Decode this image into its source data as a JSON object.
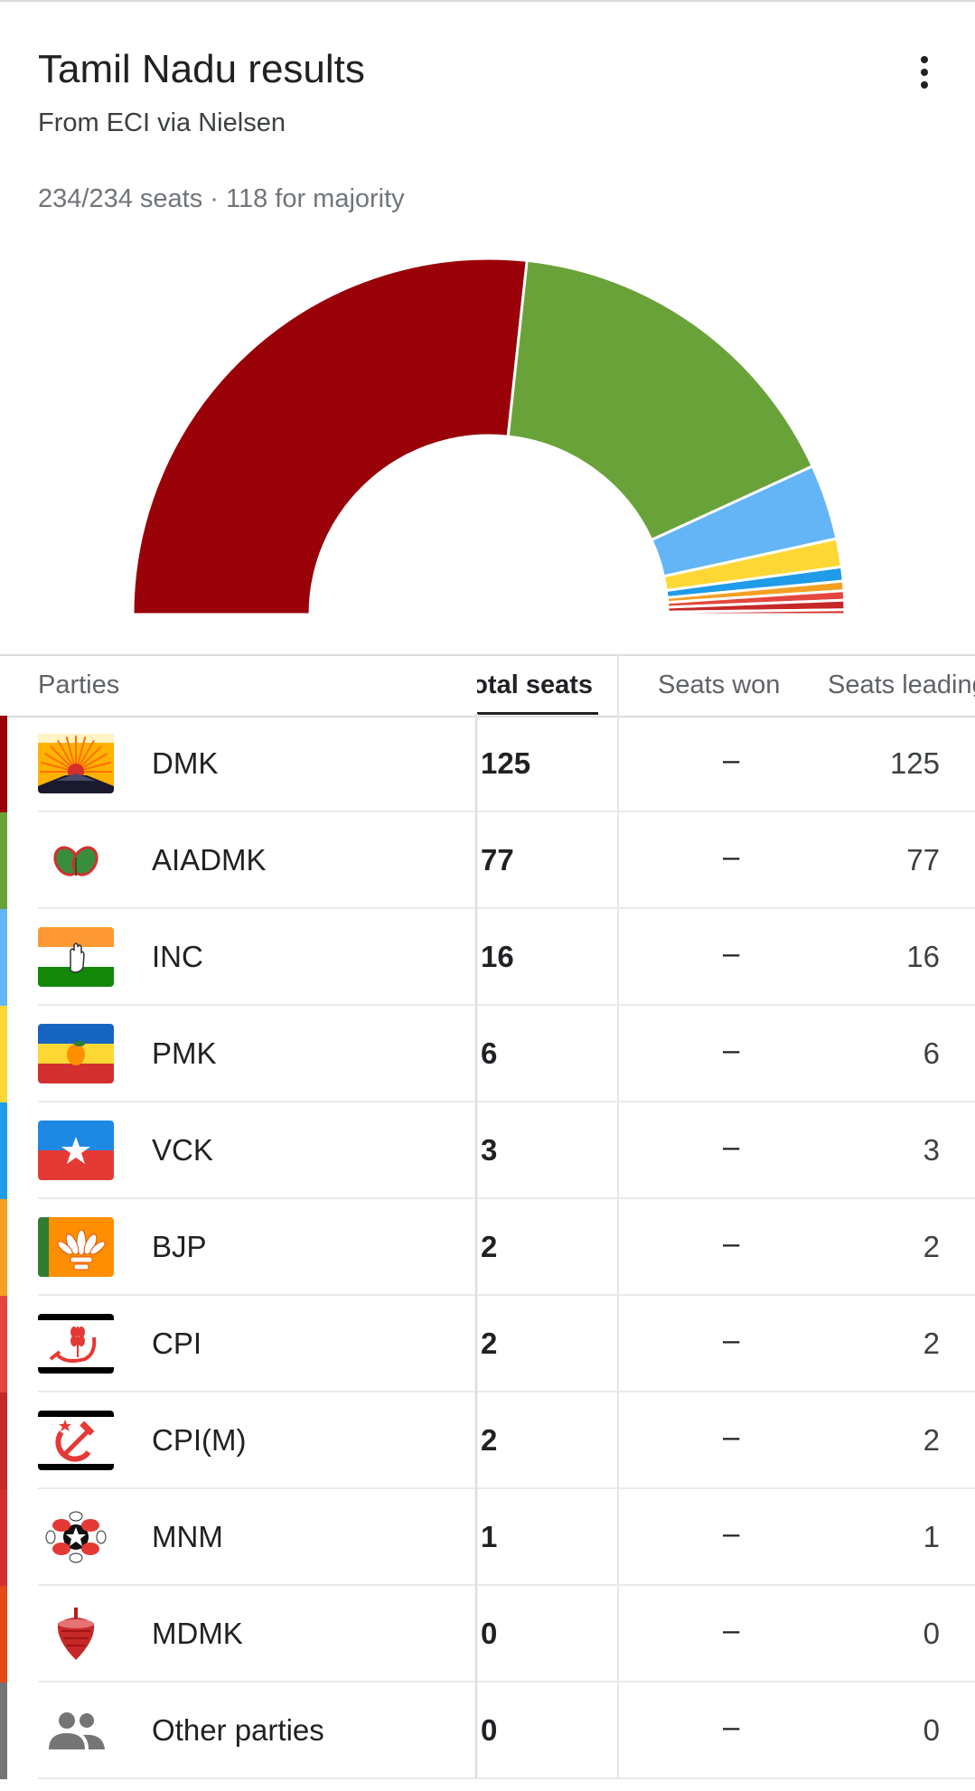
{
  "header": {
    "title": "Tamil Nadu results",
    "subtitle": "From ECI via Nielsen",
    "menu_icon": "more-vert-icon"
  },
  "seats_info": "234/234 seats · 118 for majority",
  "table": {
    "columns": [
      "Parties",
      "Total seats",
      "Seats won",
      "Seats leading"
    ],
    "rows": [
      {
        "party": "DMK",
        "total": "125",
        "won": "–",
        "leading": "125",
        "color": "#990008",
        "logo": "dmk-rising-sun-icon"
      },
      {
        "party": "AIADMK",
        "total": "77",
        "won": "–",
        "leading": "77",
        "color": "#6aa23a",
        "logo": "aiadmk-two-leaves-icon"
      },
      {
        "party": "INC",
        "total": "16",
        "won": "–",
        "leading": "16",
        "color": "#64b5f6",
        "logo": "inc-hand-flag-icon"
      },
      {
        "party": "PMK",
        "total": "6",
        "won": "–",
        "leading": "6",
        "color": "#fdd835",
        "logo": "pmk-mango-flag-icon"
      },
      {
        "party": "VCK",
        "total": "3",
        "won": "–",
        "leading": "3",
        "color": "#1e9be9",
        "logo": "vck-star-flag-icon"
      },
      {
        "party": "BJP",
        "total": "2",
        "won": "–",
        "leading": "2",
        "color": "#f4a023",
        "logo": "bjp-lotus-icon"
      },
      {
        "party": "CPI",
        "total": "2",
        "won": "–",
        "leading": "2",
        "color": "#e5463d",
        "logo": "cpi-sickle-wheat-icon"
      },
      {
        "party": "CPI(M)",
        "total": "2",
        "won": "–",
        "leading": "2",
        "color": "#c62828",
        "logo": "cpim-hammer-sickle-icon"
      },
      {
        "party": "MNM",
        "total": "1",
        "won": "–",
        "leading": "1",
        "color": "#d32f2f",
        "logo": "mnm-hands-star-icon"
      },
      {
        "party": "MDMK",
        "total": "0",
        "won": "–",
        "leading": "0",
        "color": "#e64a19",
        "logo": "mdmk-top-icon"
      },
      {
        "party": "Other parties",
        "total": "0",
        "won": "–",
        "leading": "0",
        "color": "#757575",
        "logo": "people-icon"
      }
    ]
  }
}
